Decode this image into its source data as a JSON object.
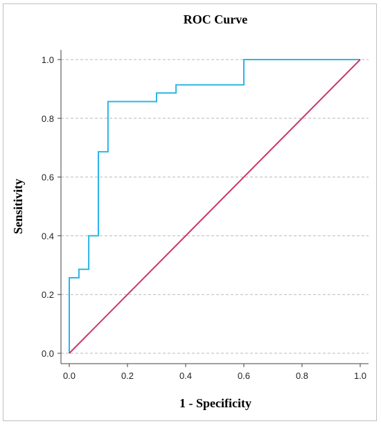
{
  "chart_data": {
    "type": "line",
    "title": "ROC Curve",
    "xlabel": "1 - Specificity",
    "ylabel": "Sensitivity",
    "xlim": [
      0,
      1
    ],
    "ylim": [
      0,
      1
    ],
    "xticks": [
      "0.0",
      "0.2",
      "0.4",
      "0.6",
      "0.8",
      "1.0"
    ],
    "yticks": [
      "0.0",
      "0.2",
      "0.4",
      "0.6",
      "0.8",
      "1.0"
    ],
    "grid": "horizontal dashed",
    "series": [
      {
        "color": "#29b6e8",
        "x": [
          0.0,
          0.0,
          0.033,
          0.033,
          0.067,
          0.067,
          0.1,
          0.1,
          0.133,
          0.133,
          0.3,
          0.3,
          0.367,
          0.367,
          0.6,
          0.6,
          1.0
        ],
        "y": [
          0.0,
          0.257,
          0.257,
          0.286,
          0.286,
          0.4,
          0.4,
          0.686,
          0.686,
          0.857,
          0.857,
          0.886,
          0.886,
          0.914,
          0.914,
          1.0,
          1.0
        ]
      },
      {
        "color": "#c9356a",
        "x": [
          0.0,
          1.0
        ],
        "y": [
          0.0,
          1.0
        ]
      }
    ]
  }
}
